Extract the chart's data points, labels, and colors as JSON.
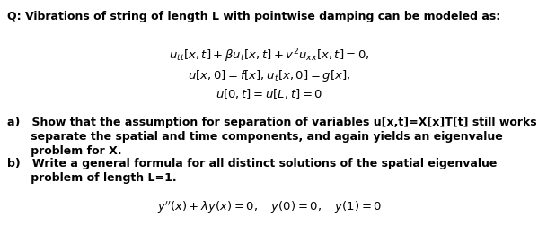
{
  "background_color": "#ffffff",
  "figsize": [
    5.99,
    2.81
  ],
  "dpi": 100,
  "text_color": "#000000",
  "font_size_q": 9.0,
  "font_size_eq": 9.5,
  "font_size_ab": 9.0,
  "q_text": "Q: Vibrations of string of length L with pointwise damping can be modeled as:",
  "eq1": "$u_{tt}[x, t] + \\beta u_t[x, t] + v^2u_{xx}[x, t] = 0,$",
  "eq2": "$u[x, 0] = f[x], u_t[x, 0] = g[x],$",
  "eq3": "$u[0, t] = u[L, t] = 0$",
  "part_a_1": "a)   Show that the assumption for separation of variables u[x,t]=X[x]T[t] still works to",
  "part_a_2": "      separate the spatial and time components, and again yields an eigenvalue",
  "part_a_3": "      problem for X.",
  "part_b_1": "b)   Write a general formula for all distinct solutions of the spatial eigenvalue",
  "part_b_2": "      problem of length L=1.",
  "eq4": "$y''(x) + \\lambda y(x) = 0, \\quad y(0) = 0, \\quad y(1) = 0$"
}
